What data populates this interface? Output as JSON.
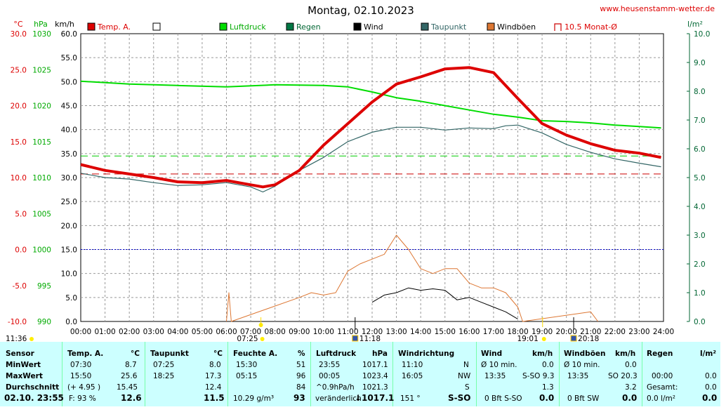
{
  "header": {
    "title": "Montag, 02.10.2023",
    "url": "www.heusenstamm-wetter.de",
    "axis_units": {
      "temp": "°C",
      "pressure": "hPa",
      "wind": "km/h",
      "rain": "l/m²"
    },
    "legend": [
      {
        "label": "Temp. A.",
        "color": "#dd0000"
      },
      {
        "label": "",
        "color": "#ffffff"
      },
      {
        "label": "Luftdruck",
        "color": "#00dd00"
      },
      {
        "label": "Regen",
        "color": "#007744"
      },
      {
        "label": "Wind",
        "color": "#000000"
      },
      {
        "label": "Taupunkt",
        "color": "#336666"
      },
      {
        "label": "Windböen",
        "color": "#dd7733"
      },
      {
        "label": "10.5 Monat-Ø",
        "color": "#cc0000"
      }
    ],
    "marker_times": {
      "sunrise": "07:25",
      "sunset": "19:01",
      "wind_max": "11:18",
      "moonset": "20:18",
      "left_label": "11:36"
    }
  },
  "chart_data": {
    "type": "line",
    "x_ticks": [
      "00:00",
      "01:00",
      "02:00",
      "03:00",
      "04:00",
      "05:00",
      "06:00",
      "07:00",
      "08:00",
      "09:00",
      "10:00",
      "11:00",
      "12:00",
      "13:00",
      "14:00",
      "15:00",
      "16:00",
      "17:00",
      "18:00",
      "19:00",
      "20:00",
      "21:00",
      "22:00",
      "23:00",
      "24:00"
    ],
    "axes": {
      "temp": {
        "ticks": [
          "30.0",
          "25.0",
          "20.0",
          "15.0",
          "10.0",
          "5.0",
          "0.0",
          "-5.0",
          "-10.0"
        ],
        "range": [
          -10,
          30
        ]
      },
      "pressure": {
        "ticks": [
          "1030",
          "1025",
          "1020",
          "1015",
          "1010",
          "1005",
          "1000",
          "995",
          "990"
        ],
        "range": [
          990,
          1030
        ]
      },
      "wind": {
        "ticks": [
          "60.0",
          "55.0",
          "50.0",
          "45.0",
          "40.0",
          "35.0",
          "30.0",
          "25.0",
          "20.0",
          "15.0",
          "10.0",
          "5.0",
          "0.0"
        ],
        "range": [
          0,
          60
        ]
      },
      "rain": {
        "ticks": [
          "10.0",
          "9.0",
          "8.0",
          "7.0",
          "6.0",
          "5.0",
          "4.0",
          "3.0",
          "2.0",
          "1.0",
          "0.0"
        ],
        "range": [
          0,
          10
        ]
      }
    },
    "reference_lines": {
      "month_avg_temp": 10.5,
      "pressure_ref": 1013,
      "zero_temp": 0
    },
    "series": [
      {
        "name": "Temp. A.",
        "unit": "°C",
        "x": [
          0,
          1,
          2,
          3,
          4,
          5,
          6,
          7,
          7.5,
          8,
          9,
          10,
          11,
          12,
          13,
          14,
          15,
          16,
          17,
          18,
          19,
          20,
          21,
          22,
          23,
          23.9
        ],
        "y": [
          11.8,
          11.0,
          10.5,
          10.0,
          9.4,
          9.3,
          9.6,
          9.0,
          8.7,
          9.0,
          11.0,
          14.5,
          17.5,
          20.5,
          23.0,
          24.0,
          25.1,
          25.3,
          24.6,
          21.0,
          17.5,
          15.9,
          14.7,
          13.8,
          13.4,
          12.8
        ]
      },
      {
        "name": "Taupunkt",
        "unit": "°C",
        "x": [
          0,
          1,
          2,
          3,
          4,
          5,
          6,
          7,
          7.5,
          8,
          9,
          10,
          11,
          12,
          13,
          14,
          15,
          16,
          17,
          17.5,
          18,
          19,
          20,
          21,
          22,
          23,
          23.9
        ],
        "y": [
          10.6,
          10.0,
          9.8,
          9.3,
          8.9,
          9.0,
          9.3,
          8.7,
          8.0,
          8.8,
          11.0,
          12.8,
          15.0,
          16.3,
          17.0,
          17.0,
          16.6,
          16.9,
          16.8,
          17.2,
          17.3,
          16.2,
          14.6,
          13.5,
          12.6,
          12.0,
          11.5
        ]
      },
      {
        "name": "Luftdruck",
        "unit": "hPa",
        "x": [
          0,
          2,
          4,
          6,
          8,
          10,
          11,
          12,
          13,
          14,
          15,
          16,
          17,
          18,
          19,
          20,
          21,
          22,
          23,
          23.9
        ],
        "y": [
          1023.4,
          1023.0,
          1022.8,
          1022.6,
          1022.9,
          1022.8,
          1022.6,
          1021.9,
          1021.1,
          1020.6,
          1020.0,
          1019.4,
          1018.8,
          1018.4,
          1017.9,
          1017.8,
          1017.6,
          1017.3,
          1017.1,
          1016.9
        ]
      },
      {
        "name": "Wind",
        "unit": "km/h",
        "x": [
          12,
          12.5,
          13,
          13.5,
          14,
          14.5,
          15,
          15.5,
          16,
          16.5,
          17,
          17.5,
          18
        ],
        "y": [
          4.0,
          5.5,
          6.0,
          7.0,
          6.5,
          6.8,
          6.5,
          4.5,
          5.0,
          4.0,
          3.0,
          2.0,
          0.5
        ]
      },
      {
        "name": "Windböen",
        "unit": "km/h",
        "x": [
          6,
          6.1,
          6.2,
          9,
          9.5,
          10,
          10.5,
          11,
          11.5,
          12,
          12.5,
          13,
          13.5,
          14,
          14.5,
          15,
          15.5,
          16,
          16.5,
          17,
          17.5,
          18,
          18.2,
          21,
          21.3
        ],
        "y": [
          0,
          6,
          0,
          5,
          6,
          5.5,
          6,
          10.5,
          12,
          13,
          14,
          18,
          15,
          11,
          10,
          11,
          11,
          8,
          7,
          7,
          6,
          3,
          0,
          2,
          0
        ]
      }
    ],
    "markers": {
      "sunrise": 7.42,
      "sunset": 19.02,
      "wind_max": 11.3,
      "moonset": 20.3
    }
  },
  "table": {
    "row_labels": [
      "Sensor",
      "MinWert",
      "MaxWert",
      "Durchschnitt"
    ],
    "date": "02.10. 23:55",
    "temp": {
      "title": "Temp. A.",
      "unit": "°C",
      "min_time": "07:30",
      "min": "8.7",
      "max_time": "15:50",
      "max": "25.6",
      "avg_note": "(+ 4.95 )",
      "avg": "15.45",
      "cur_label": "F: 93 %",
      "cur": "12.6"
    },
    "dew": {
      "title": "Taupunkt",
      "unit": "°C",
      "min_time": "07:25",
      "min": "8.0",
      "max_time": "18:25",
      "max": "17.3",
      "avg": "12.4",
      "cur": "11.5"
    },
    "hum": {
      "title": "Feuchte A.",
      "unit": "%",
      "min_time": "15:30",
      "min": "51",
      "max_time": "05:15",
      "max": "96",
      "avg": "84",
      "cur_label": "10.29 g/m³",
      "cur": "93"
    },
    "press": {
      "title": "Luftdruck",
      "unit": "hPa",
      "min_time": "23:55",
      "min": "1017.1",
      "max_time": "00:05",
      "max": "1023.4",
      "avg_label": "^0.9hPa/h",
      "avg": "1021.3",
      "cur_label": "veränderlich",
      "cur": "↓1017.1"
    },
    "dir": {
      "title": "Windrichtung",
      "min_time": "11:10",
      "min": "N",
      "max_time": "16:05",
      "max": "NW",
      "avg": "S",
      "cur_label": "151 °",
      "cur": "S-SO"
    },
    "wind": {
      "title": "Wind",
      "unit": "km/h",
      "min_time": "Ø 10 min.",
      "min": "0.0",
      "max_time": "13:35",
      "max": "S-SO 9.3",
      "avg": "1.3",
      "cur_label": "0 Bft S-SO",
      "cur": "0.0"
    },
    "gust": {
      "title": "Windböen",
      "unit": "km/h",
      "min_time": "Ø 10 min.",
      "min": "0.0",
      "max_time": "13:35",
      "max": "SO 20.3",
      "avg": "3.2",
      "cur_label": "0 Bft SW",
      "cur": "0.0"
    },
    "rain": {
      "title": "Regen",
      "unit": "l/m²",
      "min_time": "00:00",
      "min": "0.0",
      "max_label": "Gesamt:",
      "max": "0.0",
      "avg_label": "0.0 l/m²",
      "cur": "0.0"
    }
  }
}
